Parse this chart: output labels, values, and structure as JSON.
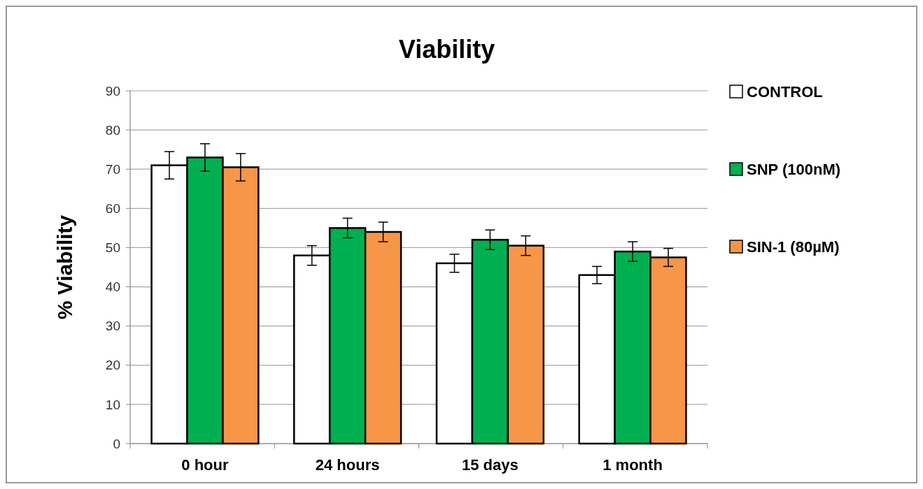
{
  "chart_data": {
    "type": "bar",
    "title": "Viability",
    "ylabel": "% Viability",
    "categories": [
      "0 hour",
      "24 hours",
      "15 days",
      "1 month"
    ],
    "series": [
      {
        "name": "CONTROL",
        "color": "#ffffff",
        "values": [
          71,
          48,
          46,
          43
        ],
        "errors": [
          3.5,
          2.5,
          2.3,
          2.2
        ]
      },
      {
        "name": "SNP (100nM)",
        "color": "#00b050",
        "values": [
          73,
          55,
          52,
          49
        ],
        "errors": [
          3.5,
          2.5,
          2.5,
          2.5
        ]
      },
      {
        "name": "SIN-1 (80µM)",
        "color": "#f79646",
        "values": [
          70.5,
          54,
          50.5,
          47.5
        ],
        "errors": [
          3.5,
          2.5,
          2.5,
          2.3
        ]
      }
    ],
    "ylim": [
      0,
      90
    ],
    "yticks": [
      0,
      10,
      20,
      30,
      40,
      50,
      60,
      70,
      80,
      90
    ],
    "grid": "y",
    "legend": "right"
  }
}
